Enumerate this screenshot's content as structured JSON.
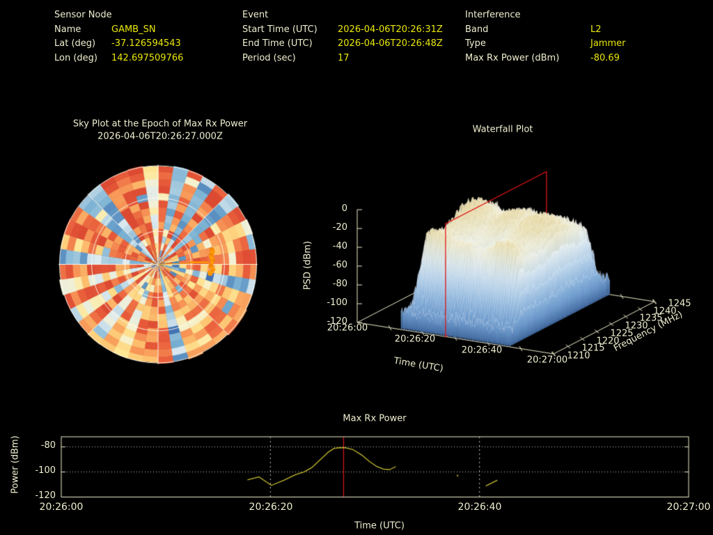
{
  "header": {
    "sensor": {
      "title": "Sensor Node",
      "rows": [
        {
          "label": "Name",
          "value": "GAMB_SN"
        },
        {
          "label": "Lat (deg)",
          "value": "-37.126594543"
        },
        {
          "label": "Lon (deg)",
          "value": "142.697509766"
        }
      ]
    },
    "event": {
      "title": "Event",
      "rows": [
        {
          "label": "Start Time (UTC)",
          "value": "2026-04-06T20:26:31Z"
        },
        {
          "label": "End Time (UTC)",
          "value": "2026-04-06T20:26:48Z"
        },
        {
          "label": "Period (sec)",
          "value": "17"
        }
      ]
    },
    "interference": {
      "title": "Interference",
      "rows": [
        {
          "label": "Band",
          "value": "L2"
        },
        {
          "label": "Type",
          "value": "Jammer"
        },
        {
          "label": "Max Rx Power (dBm)",
          "value": "-80.69"
        }
      ]
    }
  },
  "chart_data": [
    {
      "type": "heatmap",
      "subtype": "polar-sky-plot",
      "title": "Sky Plot at the Epoch of Max Rx Power",
      "subtitle": "2026-04-06T20:26:27.000Z",
      "rings_elevation_deg": [
        0,
        30,
        60
      ],
      "spoke_interval_deg": 45,
      "colormap": "RdYlBu_r",
      "dominant_value_range": "high (red/orange) with scattered low (blue) cells",
      "marker": {
        "name": "jammer-bearing-track",
        "azimuth": "east",
        "radial_fraction": 0.53,
        "color": "#ff9800"
      }
    },
    {
      "type": "surface",
      "subtype": "waterfall-3d",
      "title": "Waterfall Plot",
      "xlabel": "Time (UTC)",
      "ylabel": "PSD (dBm)",
      "zlabel": "Frequency (MHz)",
      "x_ticks": [
        "20:26:00",
        "20:26:20",
        "20:26:40",
        "20:27:00"
      ],
      "y_ticks": [
        0,
        -20,
        -40,
        -60,
        -80,
        -100,
        -120
      ],
      "z_ticks": [
        1210,
        1215,
        1220,
        1225,
        1230,
        1235,
        1240,
        1245
      ],
      "psd_range_dbm": [
        -120,
        0
      ],
      "freq_range_mhz": [
        1210,
        1245
      ],
      "time_range": [
        "20:26:00",
        "20:27:00"
      ],
      "signal_extent_time_s": [
        12.5,
        47.5
      ],
      "plateau_psd_dbm": -27,
      "noise_floor_dbm": -102,
      "highlight_slice": {
        "time": "20:26:27",
        "time_s": 27,
        "color": "#dd1515"
      }
    },
    {
      "type": "line",
      "title": "Max Rx Power",
      "xlabel": "Time (UTC)",
      "ylabel": "Power (dBm)",
      "x_ticks": [
        "20:26:00",
        "20:26:20",
        "20:26:40",
        "20:27:00"
      ],
      "y_ticks": [
        -80,
        -100,
        -120
      ],
      "ylim": [
        -120,
        -72
      ],
      "xlim_s": [
        0,
        60
      ],
      "grid": {
        "h_dotted_at": [
          -80,
          -100
        ],
        "v_dashed_at_s": [
          20,
          40
        ]
      },
      "epoch_marker_s": 27,
      "series": [
        {
          "name": "max-rx-power",
          "color": "#c6ba2e",
          "points_s_dbm": [
            [
              17.8,
              -106.3
            ],
            [
              18.9,
              -103.9
            ],
            [
              20.1,
              -110.7
            ],
            [
              21.3,
              -106.6
            ],
            [
              22.4,
              -102.2
            ],
            [
              23.2,
              -100.1
            ],
            [
              24.0,
              -96.3
            ],
            [
              24.9,
              -89.2
            ],
            [
              25.6,
              -83.8
            ],
            [
              26.1,
              -81.2
            ],
            [
              26.6,
              -80.7
            ],
            [
              27.2,
              -80.7
            ],
            [
              27.9,
              -82.2
            ],
            [
              28.7,
              -86.3
            ],
            [
              29.5,
              -91.8
            ],
            [
              30.1,
              -95.3
            ],
            [
              30.8,
              -97.7
            ],
            [
              31.4,
              -98.2
            ],
            [
              32.0,
              -95.7
            ]
          ]
        },
        {
          "name": "max-rx-power-segment-2",
          "color": "#c6ba2e",
          "points_s_dbm": [
            [
              40.6,
              -111.2
            ],
            [
              41.7,
              -106.6
            ]
          ]
        },
        {
          "name": "max-rx-power-dot",
          "color": "#c6ba2e",
          "points_s_dbm": [
            [
              37.9,
              -102.9
            ]
          ]
        }
      ]
    }
  ],
  "colors": {
    "background": "#000000",
    "label_text": "#efeecf",
    "value_text": "#e9e70a",
    "axis": "#efeccb",
    "grid_dotted": "#cfcfcf",
    "red_marker": "#dd1515",
    "power_line": "#c6ba2e",
    "sky_track": "#ff9800",
    "sky_grid": "#fffdf0",
    "sky_palette": [
      [
        0,
        "#345fa8"
      ],
      [
        0.1,
        "#4575b4"
      ],
      [
        0.22,
        "#74add1"
      ],
      [
        0.34,
        "#a8cce0"
      ],
      [
        0.44,
        "#dbe9f0"
      ],
      [
        0.53,
        "#f6f2d0"
      ],
      [
        0.62,
        "#fee695"
      ],
      [
        0.71,
        "#fdc370"
      ],
      [
        0.8,
        "#f79456"
      ],
      [
        0.89,
        "#ea603d"
      ],
      [
        1,
        "#dc4a32"
      ]
    ],
    "wf_palette": [
      [
        -10,
        "#e6d49a"
      ],
      [
        -22,
        "#ecdfae"
      ],
      [
        -32,
        "#f0ecd2"
      ],
      [
        -45,
        "#eef3f2"
      ],
      [
        -58,
        "#d8e7f3"
      ],
      [
        -72,
        "#b9d3ea"
      ],
      [
        -88,
        "#93badf"
      ],
      [
        -104,
        "#6f9ccf"
      ],
      [
        -120,
        "#41699f"
      ]
    ]
  }
}
